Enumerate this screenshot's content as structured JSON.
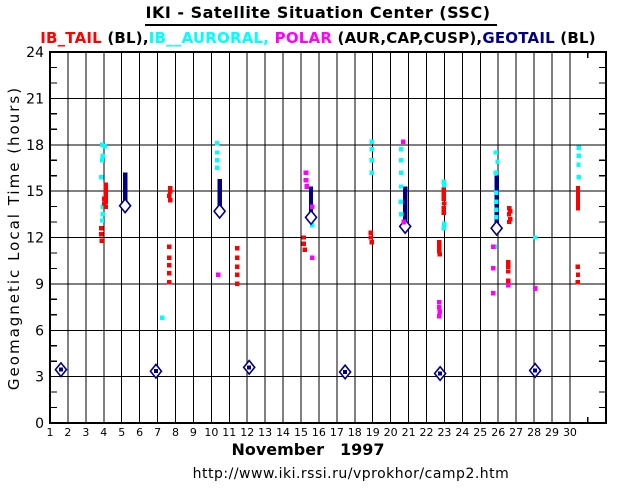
{
  "title": "IKI - Satellite Situation Center (SSC)",
  "legend_segments": [
    {
      "text": "IB_TAIL",
      "color": "#ff0000"
    },
    {
      "text": " (BL),",
      "color": "#000000"
    },
    {
      "text": "IB__AURORAL, ",
      "color": "#00ffff"
    },
    {
      "text": "POLAR",
      "color": "#ff00ff"
    },
    {
      "text": " (AUR,CAP,CUSP),",
      "color": "#000000"
    },
    {
      "text": "GEOTAIL",
      "color": "#000080"
    },
    {
      "text": " (BL)",
      "color": "#000000"
    }
  ],
  "xaxis": {
    "month": "November",
    "year": "1997"
  },
  "footer_url": "http://www.iki.rssi.ru/vprokhor/camp2.htm",
  "chart_data": {
    "type": "scatter",
    "title": "IKI - Satellite Situation Center (SSC)",
    "xlabel": "November 1997",
    "ylabel": "Geomagnetic Local Time (hours)",
    "xlim": [
      1,
      32
    ],
    "ylim": [
      0,
      24
    ],
    "x_ticks": [
      1,
      2,
      3,
      4,
      5,
      6,
      7,
      8,
      9,
      10,
      11,
      12,
      13,
      14,
      15,
      16,
      17,
      18,
      19,
      20,
      21,
      22,
      23,
      24,
      25,
      26,
      27,
      28,
      29,
      30
    ],
    "x_minor_tick_day": 31,
    "y_major_ticks": [
      0,
      3,
      6,
      9,
      12,
      15,
      18,
      21,
      24
    ],
    "y_minor_tick_step": 1,
    "grid": "major-both",
    "series": [
      {
        "name": "IB_TAIL (BL)",
        "color": "#ff0000",
        "marker": "square-dot",
        "points": [
          [
            4.12,
            15.4
          ],
          [
            4.12,
            15.2
          ],
          [
            4.12,
            15.0
          ],
          [
            4.12,
            14.8
          ],
          [
            4.12,
            14.6
          ],
          [
            4.02,
            14.5
          ],
          [
            4.12,
            14.3
          ],
          [
            4.02,
            14.2
          ],
          [
            4.12,
            14.0
          ],
          [
            3.85,
            12.6
          ],
          [
            3.85,
            12.2
          ],
          [
            3.88,
            11.8
          ],
          [
            7.7,
            15.2
          ],
          [
            7.7,
            15.0
          ],
          [
            7.66,
            14.7
          ],
          [
            7.7,
            14.4
          ],
          [
            7.66,
            11.4
          ],
          [
            7.66,
            10.7
          ],
          [
            7.66,
            10.2
          ],
          [
            7.66,
            9.7
          ],
          [
            7.66,
            9.1
          ],
          [
            11.45,
            11.3
          ],
          [
            11.45,
            10.7
          ],
          [
            11.45,
            10.1
          ],
          [
            11.45,
            9.6
          ],
          [
            11.45,
            9.0
          ],
          [
            15.16,
            12.0
          ],
          [
            15.16,
            11.6
          ],
          [
            15.2,
            11.2
          ],
          [
            18.9,
            12.3
          ],
          [
            18.9,
            12.0
          ],
          [
            18.94,
            11.7
          ],
          [
            22.97,
            15.1
          ],
          [
            22.97,
            14.8
          ],
          [
            22.97,
            14.5
          ],
          [
            23.0,
            14.2
          ],
          [
            22.97,
            13.9
          ],
          [
            22.97,
            13.6
          ],
          [
            22.7,
            11.7
          ],
          [
            22.7,
            11.4
          ],
          [
            22.7,
            11.1
          ],
          [
            22.73,
            10.9
          ],
          [
            26.62,
            13.9
          ],
          [
            26.66,
            13.7
          ],
          [
            26.6,
            13.5
          ],
          [
            26.66,
            13.2
          ],
          [
            26.62,
            13.0
          ],
          [
            26.56,
            10.4
          ],
          [
            26.56,
            10.1
          ],
          [
            26.56,
            9.8
          ],
          [
            26.56,
            9.2
          ],
          [
            30.45,
            15.2
          ],
          [
            30.45,
            15.0
          ],
          [
            30.45,
            14.8
          ],
          [
            30.45,
            14.55
          ],
          [
            30.45,
            14.3
          ],
          [
            30.45,
            14.1
          ],
          [
            30.45,
            13.9
          ],
          [
            30.43,
            10.1
          ],
          [
            30.45,
            9.6
          ],
          [
            30.43,
            9.1
          ]
        ]
      },
      {
        "name": "IB__AURORAL",
        "color": "#00ffff",
        "marker": "square-dot",
        "points": [
          [
            3.9,
            18.0
          ],
          [
            4.05,
            17.9
          ],
          [
            3.95,
            17.3
          ],
          [
            3.9,
            17.0
          ],
          [
            3.86,
            15.9
          ],
          [
            3.95,
            14.0
          ],
          [
            3.95,
            13.5
          ],
          [
            3.9,
            13.1
          ],
          [
            7.25,
            6.8
          ],
          [
            10.32,
            18.1
          ],
          [
            10.32,
            17.5
          ],
          [
            10.32,
            17.0
          ],
          [
            10.32,
            16.5
          ],
          [
            15.62,
            12.8
          ],
          [
            18.95,
            18.2
          ],
          [
            18.95,
            17.7
          ],
          [
            18.95,
            17.0
          ],
          [
            18.95,
            16.2
          ],
          [
            20.6,
            17.7
          ],
          [
            20.6,
            17.0
          ],
          [
            20.6,
            16.2
          ],
          [
            20.58,
            15.3
          ],
          [
            20.56,
            14.3
          ],
          [
            20.6,
            13.5
          ],
          [
            22.97,
            15.6
          ],
          [
            23.0,
            15.35
          ],
          [
            22.97,
            14.2
          ],
          [
            23.0,
            12.9
          ],
          [
            22.97,
            12.6
          ],
          [
            25.86,
            17.5
          ],
          [
            25.96,
            16.9
          ],
          [
            25.86,
            16.2
          ],
          [
            25.9,
            14.9
          ],
          [
            25.88,
            14.3
          ],
          [
            25.9,
            13.8
          ],
          [
            25.88,
            13.3
          ],
          [
            25.8,
            11.4
          ],
          [
            28.06,
            12.0
          ],
          [
            30.5,
            17.8
          ],
          [
            30.5,
            17.3
          ],
          [
            30.48,
            16.7
          ],
          [
            30.5,
            15.9
          ]
        ]
      },
      {
        "name": "POLAR (AUR,CAP,CUSP)",
        "color": "#ff00ff",
        "marker": "square-dot",
        "points": [
          [
            10.38,
            9.6
          ],
          [
            15.28,
            16.2
          ],
          [
            15.28,
            15.7
          ],
          [
            15.31,
            15.3
          ],
          [
            15.62,
            14.0
          ],
          [
            15.62,
            10.7
          ],
          [
            20.7,
            18.2
          ],
          [
            20.74,
            13.0
          ],
          [
            22.7,
            7.8
          ],
          [
            22.7,
            7.5
          ],
          [
            22.73,
            7.2
          ],
          [
            22.7,
            6.9
          ],
          [
            25.73,
            11.4
          ],
          [
            25.73,
            10.0
          ],
          [
            25.73,
            8.4
          ],
          [
            26.55,
            8.9
          ],
          [
            28.07,
            8.7
          ]
        ]
      },
      {
        "name": "GEOTAIL (BL)",
        "color": "#000080",
        "marker": "vbar-with-open-diamond",
        "bars": [
          {
            "day": 5.19,
            "hour_start": 14.3,
            "hour_end": 16.2,
            "diamond_hour": 14.05
          },
          {
            "day": 10.46,
            "hour_start": 14.0,
            "hour_end": 15.8,
            "diamond_hour": 13.7
          },
          {
            "day": 15.56,
            "hour_start": 13.5,
            "hour_end": 15.3,
            "diamond_hour": 13.3
          },
          {
            "day": 20.81,
            "hour_start": 12.9,
            "hour_end": 15.3,
            "diamond_hour": 12.72
          },
          {
            "day": 25.91,
            "hour_start": 12.8,
            "hour_end": 16.0,
            "diamond_hour": 12.6
          }
        ]
      },
      {
        "name": "GEOTAIL perigee",
        "color": "#000080",
        "marker": "open-diamond-center-dot",
        "points": [
          [
            1.61,
            3.45
          ],
          [
            6.91,
            3.35
          ],
          [
            12.11,
            3.6
          ],
          [
            17.46,
            3.3
          ],
          [
            22.76,
            3.2
          ],
          [
            28.06,
            3.4
          ]
        ]
      }
    ]
  }
}
